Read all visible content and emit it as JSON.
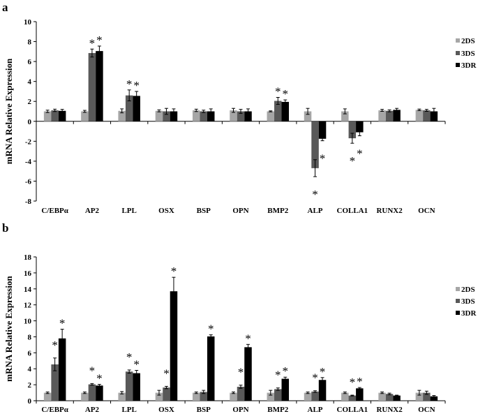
{
  "chart_data": [
    {
      "type": "bar",
      "panel_label": "a",
      "ylabel": "mRNA Relative Expression",
      "xlabel": "",
      "ylim": [
        -8,
        10
      ],
      "yticks": [
        -8,
        -6,
        -4,
        -2,
        0,
        2,
        4,
        6,
        8,
        10
      ],
      "grid": false,
      "legend_position": "right",
      "categories": [
        "C/EBPα",
        "AP2",
        "LPL",
        "OSX",
        "BSP",
        "OPN",
        "BMP2",
        "ALP",
        "COLLA1",
        "RUNX2",
        "OCN"
      ],
      "series": [
        {
          "name": "2DS",
          "color": "#a6a6a6",
          "values": [
            1.0,
            1.0,
            1.05,
            1.05,
            1.1,
            1.1,
            1.0,
            1.0,
            1.0,
            1.1,
            1.15
          ],
          "errors": [
            0.12,
            0.1,
            0.2,
            0.1,
            0.12,
            0.2,
            0.05,
            0.3,
            0.25,
            0.1,
            0.08
          ]
        },
        {
          "name": "3DS",
          "color": "#595959",
          "values": [
            1.1,
            6.85,
            2.6,
            1.0,
            1.0,
            1.0,
            2.05,
            -4.7,
            -1.7,
            1.05,
            1.1
          ],
          "errors": [
            0.12,
            0.4,
            0.55,
            0.3,
            0.12,
            0.2,
            0.35,
            0.85,
            0.5,
            0.1,
            0.1
          ]
        },
        {
          "name": "3DR",
          "color": "#000000",
          "values": [
            1.05,
            7.05,
            2.55,
            1.0,
            1.0,
            1.0,
            1.95,
            -1.75,
            -1.1,
            1.15,
            1.0
          ],
          "errors": [
            0.15,
            0.5,
            0.45,
            0.25,
            0.25,
            0.25,
            0.2,
            0.2,
            0.35,
            0.15,
            0.3
          ]
        }
      ],
      "annotations": [
        {
          "text": "*",
          "category": "AP2",
          "series": "3DS"
        },
        {
          "text": "*",
          "category": "AP2",
          "series": "3DR"
        },
        {
          "text": "*",
          "category": "LPL",
          "series": "3DS"
        },
        {
          "text": "*",
          "category": "LPL",
          "series": "3DR"
        },
        {
          "text": "*",
          "category": "BMP2",
          "series": "3DS"
        },
        {
          "text": "*",
          "category": "BMP2",
          "series": "3DR"
        },
        {
          "text": "*",
          "category": "ALP",
          "series": "3DS"
        },
        {
          "text": "*",
          "category": "ALP",
          "series": "3DR"
        },
        {
          "text": "*",
          "category": "COLLA1",
          "series": "3DS"
        },
        {
          "text": "*",
          "category": "COLLA1",
          "series": "3DR"
        }
      ]
    },
    {
      "type": "bar",
      "panel_label": "b",
      "ylabel": "mRNA Relative Expression",
      "xlabel": "",
      "ylim": [
        0,
        18
      ],
      "yticks": [
        0,
        2,
        4,
        6,
        8,
        10,
        12,
        14,
        16,
        18
      ],
      "grid": false,
      "legend_position": "right",
      "categories": [
        "C/EBPα",
        "AP2",
        "LPL",
        "OSX",
        "BSP",
        "OPN",
        "BMP2",
        "ALP",
        "COLLA1",
        "RUNX2",
        "OCN"
      ],
      "series": [
        {
          "name": "2DS",
          "color": "#a6a6a6",
          "values": [
            1.0,
            1.0,
            1.0,
            1.0,
            1.0,
            1.0,
            1.0,
            1.0,
            1.0,
            1.0,
            1.0
          ],
          "errors": [
            0.1,
            0.1,
            0.15,
            0.3,
            0.1,
            0.1,
            0.3,
            0.1,
            0.1,
            0.1,
            0.3
          ]
        },
        {
          "name": "3DS",
          "color": "#595959",
          "values": [
            4.55,
            2.05,
            3.65,
            1.65,
            1.1,
            1.75,
            1.45,
            1.15,
            0.65,
            0.85,
            1.0
          ],
          "errors": [
            0.8,
            0.1,
            0.2,
            0.15,
            0.2,
            0.2,
            0.15,
            0.1,
            0.05,
            0.1,
            0.2
          ]
        },
        {
          "name": "3DR",
          "color": "#000000",
          "values": [
            7.8,
            1.9,
            3.45,
            13.7,
            8.05,
            6.7,
            2.75,
            2.6,
            1.55,
            0.65,
            0.55
          ],
          "errors": [
            1.15,
            0.15,
            0.35,
            1.75,
            0.2,
            0.35,
            0.2,
            0.3,
            0.1,
            0.05,
            0.1
          ]
        }
      ],
      "annotations": [
        {
          "text": "*",
          "category": "C/EBPα",
          "series": "3DS"
        },
        {
          "text": "*",
          "category": "C/EBPα",
          "series": "3DR"
        },
        {
          "text": "*",
          "category": "AP2",
          "series": "3DS"
        },
        {
          "text": "*",
          "category": "AP2",
          "series": "3DR"
        },
        {
          "text": "*",
          "category": "LPL",
          "series": "3DS"
        },
        {
          "text": "*",
          "category": "LPL",
          "series": "3DR"
        },
        {
          "text": "*",
          "category": "OSX",
          "series": "3DS"
        },
        {
          "text": "*",
          "category": "OSX",
          "series": "3DR"
        },
        {
          "text": "*",
          "category": "BSP",
          "series": "3DR"
        },
        {
          "text": "*",
          "category": "OPN",
          "series": "3DS"
        },
        {
          "text": "*",
          "category": "OPN",
          "series": "3DR"
        },
        {
          "text": "*",
          "category": "BMP2",
          "series": "3DS"
        },
        {
          "text": "*",
          "category": "BMP2",
          "series": "3DR"
        },
        {
          "text": "*",
          "category": "ALP",
          "series": "3DS"
        },
        {
          "text": "*",
          "category": "ALP",
          "series": "3DR"
        },
        {
          "text": "*",
          "category": "COLLA1",
          "series": "3DS"
        },
        {
          "text": "*",
          "category": "COLLA1",
          "series": "3DR"
        }
      ]
    }
  ]
}
